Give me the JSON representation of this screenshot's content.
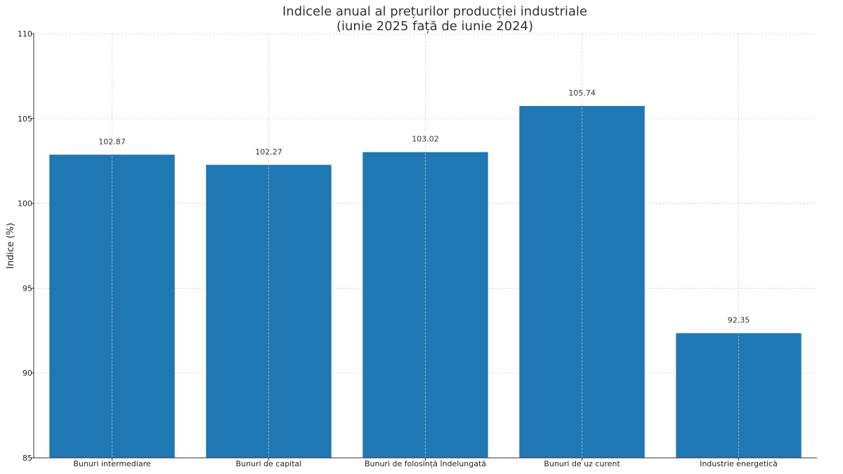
{
  "chart_data": {
    "type": "bar",
    "title": "Indicele anual al prețurilor producției industriale",
    "subtitle": "(iunie 2025 față de iunie 2024)",
    "xlabel": "",
    "ylabel": "Indice (%)",
    "categories": [
      "Bunuri intermediare",
      "Bunuri de capital",
      "Bunuri de folosință îndelungată",
      "Bunuri de uz curent",
      "Industrie energetică"
    ],
    "values": [
      102.87,
      102.27,
      103.02,
      105.74,
      92.35
    ],
    "value_labels": [
      "102.87",
      "102.27",
      "103.02",
      "105.74",
      "92.35"
    ],
    "ylim": [
      85,
      110
    ],
    "yticks": [
      85,
      90,
      95,
      100,
      105,
      110
    ],
    "grid": true,
    "bar_color": "#1f77b4",
    "grid_color": "#cccccc"
  }
}
